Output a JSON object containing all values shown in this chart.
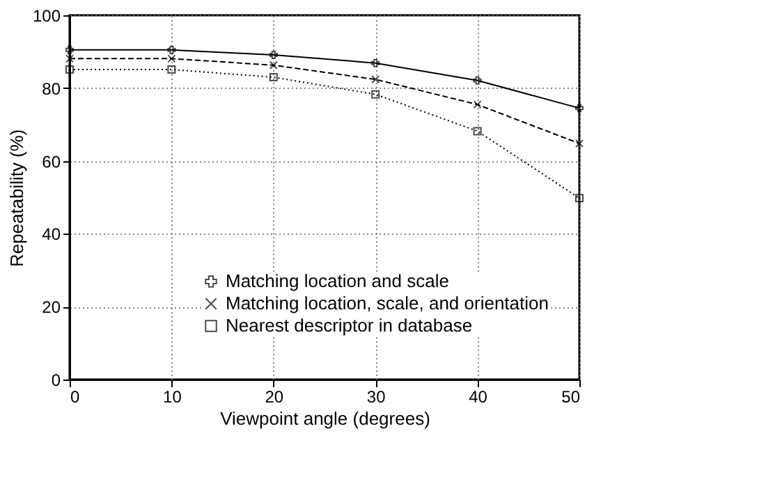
{
  "chart_data": {
    "type": "line",
    "xlabel": "Viewpoint angle (degrees)",
    "ylabel": "Repeatability (%)",
    "x": [
      0,
      10,
      20,
      30,
      40,
      50
    ],
    "xlim": [
      0,
      50
    ],
    "xticks": [
      0,
      10,
      20,
      30,
      40,
      50
    ],
    "ylim": [
      0,
      100
    ],
    "yticks": [
      0,
      20,
      40,
      60,
      80,
      100
    ],
    "grid": true,
    "legend": "bottom right",
    "series": [
      {
        "name": "Matching location and scale",
        "color": "#000000",
        "marker": "cross",
        "line_style": "solid",
        "values": [
          90.5,
          90.5,
          89.1,
          86.9,
          82.1,
          74.5
        ]
      },
      {
        "name": "Matching location, scale, and orientation",
        "color": "#000000",
        "marker": "x",
        "line_style": "dashed",
        "values": [
          88.1,
          88.1,
          86.3,
          82.4,
          75.5,
          64.8
        ]
      },
      {
        "name": "Nearest descriptor in database",
        "color": "#000000",
        "marker": "square",
        "line_style": "dotted",
        "values": [
          85.1,
          85.1,
          83.0,
          78.3,
          68.2,
          49.8
        ]
      }
    ]
  }
}
